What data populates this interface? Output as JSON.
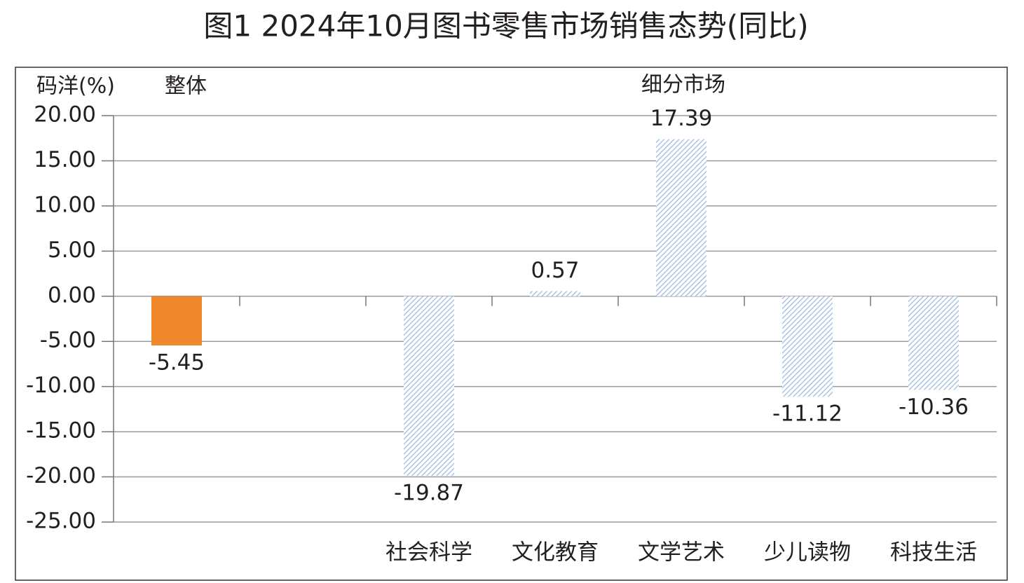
{
  "chart_data": {
    "type": "bar",
    "title": "图1  2024年10月图书零售市场销售态势(同比)",
    "y_label": "码洋(%)",
    "annotations": [
      "整体",
      "细分市场"
    ],
    "categories": [
      null,
      null,
      "社会科学",
      "文化教育",
      "文学艺术",
      "少儿读物",
      "科技生活"
    ],
    "values": [
      -5.45,
      null,
      -19.87,
      0.57,
      17.39,
      -11.12,
      -10.36
    ],
    "colors": [
      "#f0872a",
      null,
      "#9dbbe3",
      "#9dbbe3",
      "#9dbbe3",
      "#9dbbe3",
      "#9dbbe3"
    ],
    "hatched": [
      false,
      null,
      true,
      true,
      true,
      true,
      true
    ],
    "ylim": [
      -25,
      20
    ],
    "yticks": [
      {
        "value": -25,
        "label": "-25.00"
      },
      {
        "value": -20,
        "label": "-20.00"
      },
      {
        "value": -15,
        "label": "-15.00"
      },
      {
        "value": -10,
        "label": "-10.00"
      },
      {
        "value": -5,
        "label": "-5.00"
      },
      {
        "value": 0,
        "label": "0.00"
      },
      {
        "value": 5,
        "label": "5.00"
      },
      {
        "value": 10,
        "label": "10.00"
      },
      {
        "value": 15,
        "label": "15.00"
      },
      {
        "value": 20,
        "label": "20.00"
      }
    ],
    "grid": true
  }
}
